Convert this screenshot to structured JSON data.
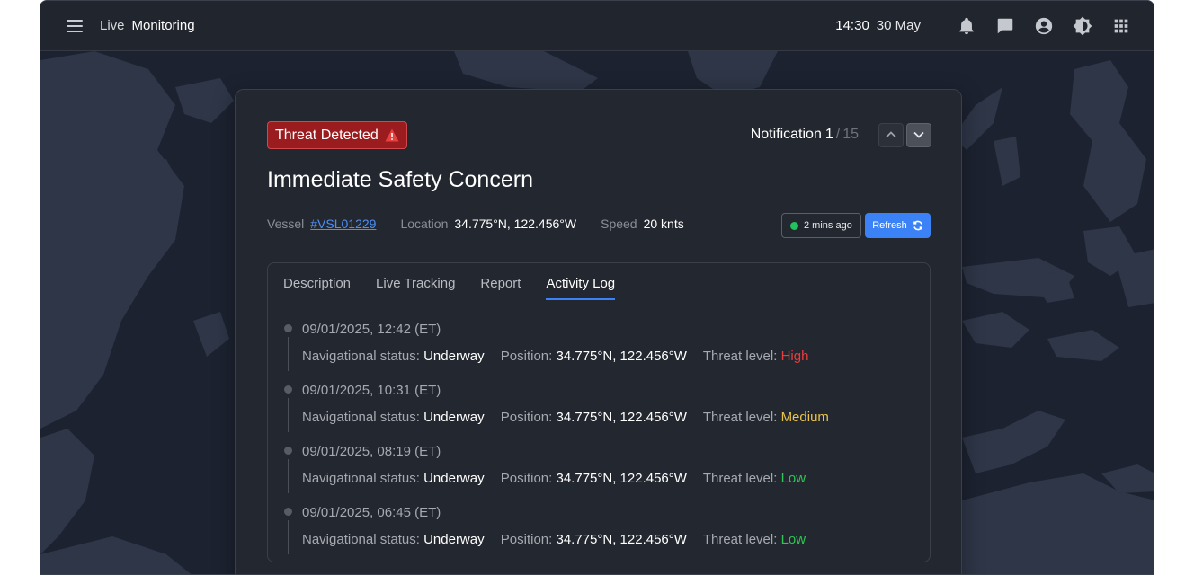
{
  "topbar": {
    "brand_prefix": "Live",
    "brand_title": "Monitoring",
    "time": "14:30",
    "date": "30 May",
    "icons": [
      "bell-icon",
      "chat-icon",
      "account-icon",
      "brightness-icon",
      "apps-grid-icon"
    ]
  },
  "alert": {
    "badge": "Threat Detected",
    "notification_label": "Notification",
    "notification_current": "1",
    "notification_separator": "/",
    "notification_total": "15",
    "title": "Immediate Safety Concern",
    "vessel_label": "Vessel",
    "vessel_id": "#VSL01229",
    "location_label": "Location",
    "location_value": "34.775°N, 122.456°W",
    "speed_label": "Speed",
    "speed_value": "20 knts",
    "updated": "2 mins ago",
    "refresh_label": "Refresh"
  },
  "tabs": [
    {
      "label": "Description",
      "active": false
    },
    {
      "label": "Live Tracking",
      "active": false
    },
    {
      "label": "Report",
      "active": false
    },
    {
      "label": "Activity Log",
      "active": true
    }
  ],
  "log": {
    "nav_label": "Navigational status:",
    "pos_label": "Position:",
    "threat_label": "Threat level:",
    "entries": [
      {
        "timestamp": "09/01/2025, 12:42 (ET)",
        "nav_status": "Underway",
        "position": "34.775°N, 122.456°W",
        "threat_level": "High"
      },
      {
        "timestamp": "09/01/2025, 10:31 (ET)",
        "nav_status": "Underway",
        "position": "34.775°N, 122.456°W",
        "threat_level": "Medium"
      },
      {
        "timestamp": "09/01/2025, 08:19 (ET)",
        "nav_status": "Underway",
        "position": "34.775°N, 122.456°W",
        "threat_level": "Low"
      },
      {
        "timestamp": "09/01/2025, 06:45 (ET)",
        "nav_status": "Underway",
        "position": "34.775°N, 122.456°W",
        "threat_level": "Low"
      }
    ]
  },
  "colors": {
    "threat_high": "#ef3b3b",
    "threat_medium": "#e8c44a",
    "threat_low": "#2fc653",
    "accent": "#3b82f6",
    "badge_bg": "#9b1c1f"
  }
}
